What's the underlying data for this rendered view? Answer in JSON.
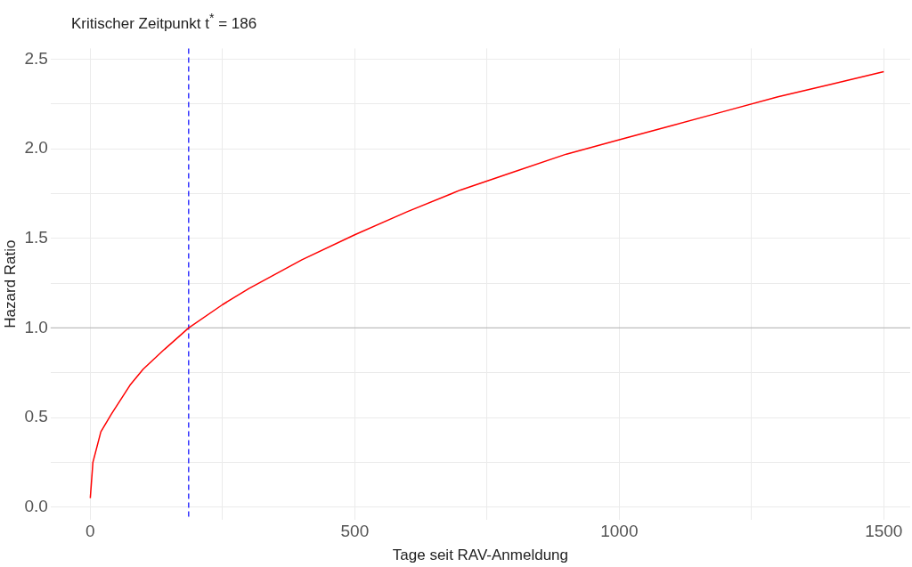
{
  "chart_data": {
    "type": "line",
    "title": "Kritischer Zeitpunkt t$^{*}$ = 186",
    "xlabel": "Tage seit RAV-Anmeldung",
    "ylabel": "Hazard Ratio",
    "x": [
      0,
      5,
      20,
      40,
      75,
      100,
      140,
      186,
      250,
      300,
      400,
      500,
      600,
      700,
      800,
      900,
      1000,
      1100,
      1200,
      1300,
      1400,
      1500
    ],
    "series": [
      {
        "color": "#ff0000",
        "values": [
          0.05,
          0.25,
          0.42,
          0.52,
          0.68,
          0.77,
          0.88,
          1.0,
          1.13,
          1.22,
          1.38,
          1.52,
          1.65,
          1.77,
          1.87,
          1.97,
          2.05,
          2.13,
          2.21,
          2.29,
          2.36,
          2.43
        ]
      }
    ],
    "xlim": [
      -75,
      1550
    ],
    "ylim": [
      -0.07,
      2.56
    ],
    "xticks": [
      0,
      {
        "value": 250,
        "label": null
      },
      500,
      {
        "value": 750,
        "label": null
      },
      1000,
      {
        "value": 1250,
        "label": null
      },
      1500
    ],
    "yticks": [
      {
        "value": 0,
        "label": "0.0"
      },
      {
        "value": 0.25,
        "label": null
      },
      {
        "value": 0.5,
        "label": "0.5"
      },
      {
        "value": 0.75,
        "label": null
      },
      {
        "value": 1,
        "label": "1.0"
      },
      {
        "value": 1.25,
        "label": null
      },
      {
        "value": 1.5,
        "label": "1.5"
      },
      {
        "value": 1.75,
        "label": null
      },
      {
        "value": 2,
        "label": "2.0"
      },
      {
        "value": 2.25,
        "label": null
      },
      {
        "value": 2.5,
        "label": "2.5"
      }
    ],
    "ref_lines": [
      {
        "axis": "y",
        "value": 1,
        "color": "#bdbdbd",
        "line_style": "solid"
      },
      {
        "axis": "x",
        "value": 186,
        "color": "#0000ff",
        "line_style": "dashed"
      }
    ],
    "grid": true,
    "line_style": "solid",
    "marker": "none",
    "legend": false
  }
}
